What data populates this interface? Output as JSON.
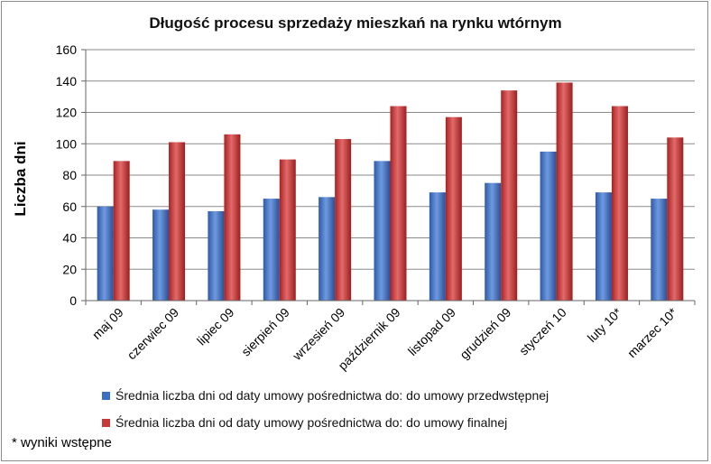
{
  "chart_data": {
    "type": "bar",
    "title": "Długość procesu sprzedaży mieszkań na rynku wtórnym",
    "ylabel": "Liczba dni",
    "xlabel": "",
    "ylim": [
      0,
      160
    ],
    "yticks": [
      0,
      20,
      40,
      60,
      80,
      100,
      120,
      140,
      160
    ],
    "grid": true,
    "legend_position": "bottom",
    "categories": [
      "maj 09",
      "czerwiec 09",
      "lipiec 09",
      "sierpień 09",
      "wrzesień 09",
      "październik 09",
      "listopad 09",
      "grudzień 09",
      "styczeń 10",
      "luty 10*",
      "marzec 10*"
    ],
    "series": [
      {
        "name": "Średnia liczba dni od daty umowy pośrednictwa do: do umowy przedwstępnej",
        "color": "#3a6fc4",
        "values": [
          60,
          58,
          57,
          65,
          66,
          89,
          69,
          75,
          95,
          69,
          65
        ]
      },
      {
        "name": "Średnia liczba dni od daty umowy pośrednictwa do: do umowy finalnej",
        "color": "#c83a3a",
        "values": [
          89,
          101,
          106,
          90,
          103,
          124,
          117,
          134,
          139,
          124,
          104
        ]
      }
    ]
  },
  "footnote": "* wyniki wstępne"
}
